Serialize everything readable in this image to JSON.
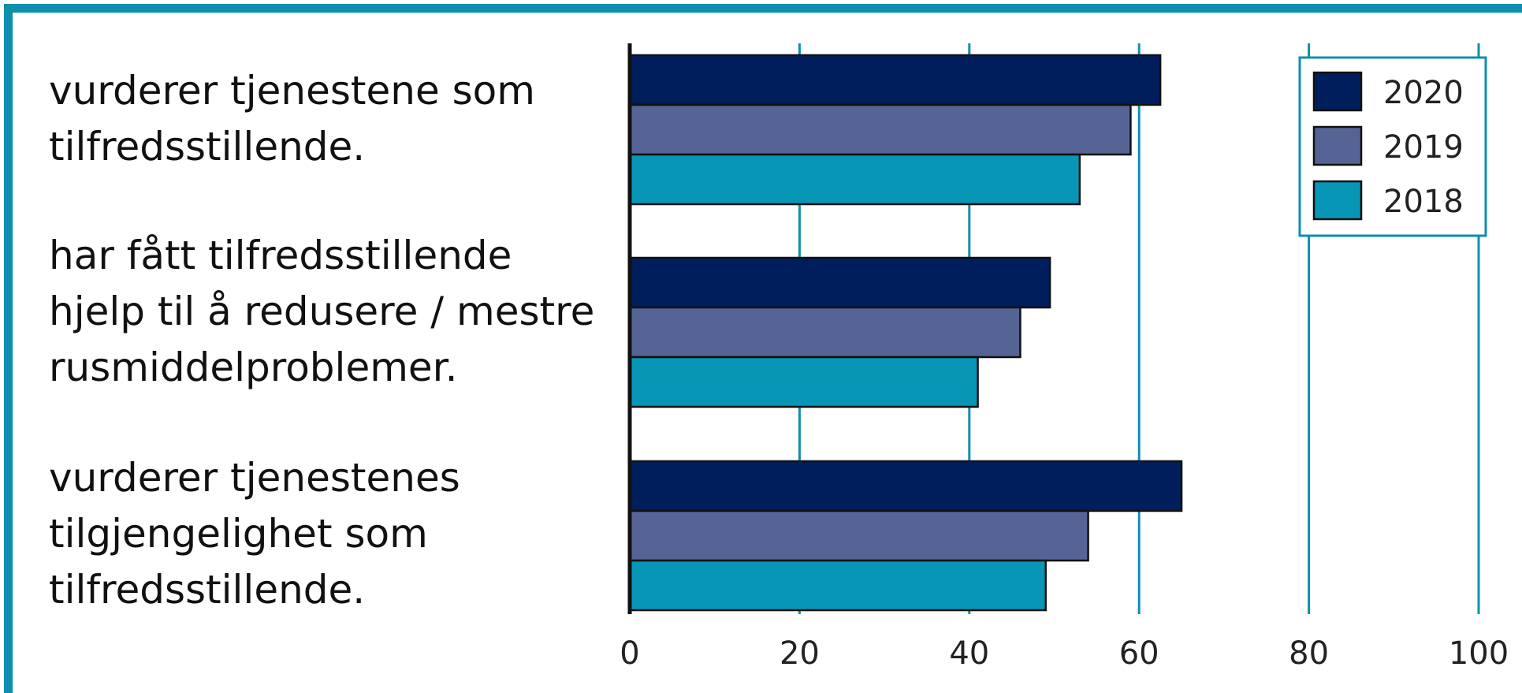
{
  "chart_data": {
    "type": "bar",
    "orientation": "horizontal",
    "categories": [
      "vurderer tjenestene som\ntilfredsstillende.",
      "har fått tilfredsstillende\nhjelp til å redusere / mestre\nrusmiddelproblemer.",
      "vurderer tjenestenes\ntilgjengelighet som\ntilfredsstillende."
    ],
    "series": [
      {
        "name": "2020",
        "values": [
          62.5,
          49.5,
          65
        ],
        "color": "#001d5c"
      },
      {
        "name": "2019",
        "values": [
          59,
          46,
          54
        ],
        "color": "#556395"
      },
      {
        "name": "2018",
        "values": [
          53,
          41,
          49
        ],
        "color": "#0796b6"
      }
    ],
    "xlim": [
      0,
      100
    ],
    "xticks": [
      "0",
      "20",
      "40",
      "60",
      "80",
      "100"
    ],
    "grid": true,
    "legend_position": "top-right",
    "colors": {
      "frame": "#0f8fae",
      "grid": "#0f8fae",
      "axis": "#111111"
    }
  }
}
